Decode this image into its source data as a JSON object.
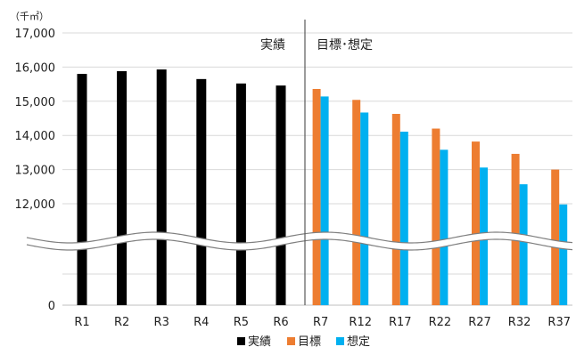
{
  "chart_data": {
    "type": "bar",
    "unit_label": "（千㎡）",
    "categories": [
      "R1",
      "R2",
      "R3",
      "R4",
      "R5",
      "R6",
      "R7",
      "R12",
      "R17",
      "R22",
      "R27",
      "R32",
      "R37"
    ],
    "series": [
      {
        "name": "実績",
        "color": "#000000",
        "values": [
          15800,
          15880,
          15930,
          15650,
          15520,
          15460,
          null,
          null,
          null,
          null,
          null,
          null,
          null
        ]
      },
      {
        "name": "目標",
        "color": "#ED7D31",
        "values": [
          null,
          null,
          null,
          null,
          null,
          null,
          15360,
          15040,
          14630,
          14200,
          13820,
          13460,
          13000
        ]
      },
      {
        "name": "想定",
        "color": "#00B0F0",
        "values": [
          null,
          null,
          null,
          null,
          null,
          null,
          15140,
          14670,
          14110,
          13580,
          13060,
          12570,
          11980
        ]
      }
    ],
    "y_ticks": [
      "17,000",
      "16,000",
      "15,000",
      "14,000",
      "13,000",
      "12,000"
    ],
    "y_tick_values": [
      17000,
      16000,
      15000,
      14000,
      13000,
      12000
    ],
    "y_zero_label": "0",
    "ylim": [
      0,
      17000
    ],
    "axis_break": "wavy break below 12,000",
    "grid": true,
    "section_labels": {
      "actual": "実績",
      "target": "目標･想定"
    },
    "legend": {
      "placement": "bottom-center",
      "items": [
        {
          "name": "実績",
          "color": "#000000"
        },
        {
          "name": "目標",
          "color": "#ED7D31"
        },
        {
          "name": "想定",
          "color": "#00B0F0"
        }
      ]
    }
  }
}
